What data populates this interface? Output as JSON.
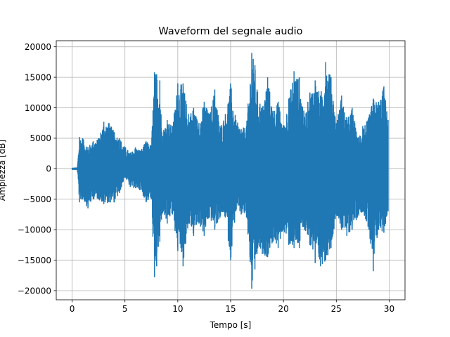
{
  "chart_data": {
    "type": "line",
    "title": "Waveform del segnale audio",
    "xlabel": "Tempo [s]",
    "ylabel": "Ampiezza [dB]",
    "xlim": [
      -1.5,
      31.5
    ],
    "ylim": [
      -21500,
      21000
    ],
    "xticks": [
      0,
      5,
      10,
      15,
      20,
      25,
      30
    ],
    "yticks": [
      -20000,
      -15000,
      -10000,
      -5000,
      0,
      5000,
      10000,
      15000,
      20000
    ],
    "grid": true,
    "line_color": "#1f77b4",
    "series": [
      {
        "name": "",
        "x": [
          0,
          0.5,
          0.7,
          1.0,
          1.5,
          2.0,
          2.5,
          3.0,
          3.5,
          4.0,
          4.5,
          5.0,
          5.5,
          6.0,
          6.5,
          7.0,
          7.5,
          7.8,
          8.0,
          8.3,
          8.5,
          9.0,
          9.5,
          10.0,
          10.3,
          10.5,
          11.0,
          11.5,
          12.0,
          12.5,
          13.0,
          13.5,
          14.0,
          14.5,
          15.0,
          15.5,
          16.0,
          16.5,
          17.0,
          17.3,
          17.5,
          18.0,
          18.5,
          19.0,
          19.5,
          20.0,
          20.5,
          21.0,
          21.5,
          22.0,
          22.5,
          23.0,
          23.5,
          24.0,
          24.5,
          25.0,
          25.5,
          26.0,
          26.5,
          27.0,
          27.5,
          28.0,
          28.5,
          29.0,
          29.5,
          29.9
        ],
        "upper": [
          100,
          150,
          5200,
          5000,
          3600,
          4500,
          5000,
          7700,
          7500,
          6000,
          5000,
          3600,
          2600,
          3500,
          3000,
          4500,
          3800,
          15800,
          15500,
          14500,
          6000,
          8000,
          7000,
          14000,
          13800,
          14000,
          9000,
          10000,
          7500,
          11000,
          9000,
          13000,
          7000,
          9000,
          14000,
          8000,
          6500,
          7000,
          19000,
          17000,
          13000,
          10000,
          15000,
          9500,
          11000,
          7000,
          11500,
          16000,
          15000,
          8500,
          12500,
          14500,
          12000,
          17500,
          15000,
          7500,
          12000,
          8000,
          10000,
          5000,
          7000,
          8000,
          11500,
          11000,
          13500,
          8000
        ],
        "lower": [
          -100,
          -150,
          -5500,
          -5000,
          -6500,
          -5000,
          -5000,
          -5800,
          -5500,
          -5500,
          -4000,
          -1300,
          -3000,
          -3200,
          -3500,
          -5500,
          -5000,
          -17800,
          -16000,
          -12000,
          -7500,
          -9000,
          -7500,
          -13500,
          -13000,
          -16000,
          -9000,
          -11000,
          -9000,
          -11000,
          -8000,
          -10000,
          -8000,
          -8000,
          -15000,
          -7000,
          -7500,
          -8000,
          -19700,
          -16500,
          -14000,
          -14000,
          -14500,
          -12000,
          -13000,
          -10000,
          -12500,
          -13000,
          -13000,
          -10000,
          -12500,
          -15500,
          -16000,
          -15000,
          -13000,
          -7500,
          -10000,
          -11000,
          -10000,
          -8000,
          -7000,
          -9500,
          -16800,
          -10000,
          -10500,
          -7000
        ]
      }
    ]
  }
}
